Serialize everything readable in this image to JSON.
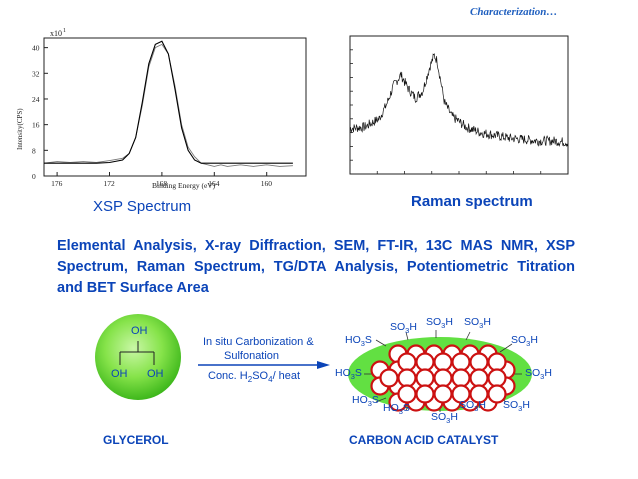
{
  "header": {
    "title": "Characterization…"
  },
  "xsp_chart": {
    "xlabel": "Binding Energy (eV)",
    "ylabel": "Intensity(CPS)",
    "multiplier": "x10",
    "multiplier_exp": "1",
    "x_ticks": [
      "176",
      "172",
      "168",
      "164",
      "160"
    ],
    "y_ticks": [
      "40",
      "32",
      "24",
      "16",
      "8",
      "0"
    ],
    "caption": "XSP Spectrum"
  },
  "raman_chart": {
    "caption": "Raman spectrum"
  },
  "chart_data": [
    {
      "type": "line",
      "xlabel": "Binding Energy (eV)",
      "ylabel": "Intensity(CPS)",
      "xlim": [
        177,
        157
      ],
      "ylim": [
        0,
        43
      ],
      "series": [
        {
          "x": [
            177,
            176,
            175,
            174,
            173,
            172,
            171,
            170.5,
            170,
            169.5,
            169,
            168.5,
            168,
            167.5,
            167,
            166.5,
            166,
            165.5,
            165,
            164,
            163.5,
            163,
            162,
            161,
            160,
            159,
            158
          ],
          "y": [
            4,
            4.5,
            4.2,
            4.5,
            4.2,
            4.8,
            5.5,
            7,
            12,
            22,
            34,
            40,
            41,
            38,
            28,
            16,
            9,
            6,
            4,
            3,
            3.5,
            3,
            3.5,
            3,
            3.5,
            3,
            3.2
          ]
        },
        {
          "x": [
            177,
            176,
            175,
            174,
            173,
            172,
            171,
            170.5,
            170,
            169.5,
            169,
            168.5,
            168,
            167.5,
            167,
            166.5,
            166,
            165.5,
            165,
            164,
            163,
            162,
            161,
            160,
            159,
            158
          ],
          "y": [
            4,
            4,
            4,
            4,
            4,
            4.2,
            5,
            7,
            12,
            23,
            35,
            41,
            42,
            38,
            27,
            15,
            8,
            5,
            4,
            4,
            4,
            4,
            4,
            4,
            4,
            4
          ]
        }
      ]
    },
    {
      "type": "line",
      "x": [
        1000,
        1100,
        1200,
        1250,
        1300,
        1350,
        1400,
        1450,
        1500,
        1550,
        1580,
        1600,
        1620,
        1650,
        1700,
        1750,
        1800,
        1900,
        2000,
        2100,
        2200,
        2300,
        2400,
        2500
      ],
      "y": [
        0.33,
        0.34,
        0.4,
        0.5,
        0.64,
        0.72,
        0.62,
        0.55,
        0.6,
        0.78,
        0.86,
        0.82,
        0.7,
        0.52,
        0.42,
        0.38,
        0.34,
        0.3,
        0.28,
        0.26,
        0.25,
        0.24,
        0.24,
        0.23
      ],
      "ylim": [
        0,
        1
      ]
    }
  ],
  "description": "Elemental Analysis, X-ray Diffraction, SEM, FT-IR, 13C MAS NMR, XSP Spectrum, Raman Spectrum, TG/DTA Analysis, Potentiometric Titration and BET Surface Area",
  "glycerol": {
    "oh_top": "OH",
    "oh_left": "OH",
    "oh_right": "OH",
    "label": "GLYCEROL"
  },
  "reaction": {
    "line1": "In situ Carbonization &",
    "line2": "Sulfonation",
    "cond_pre": "Conc. H",
    "cond_sub1": "2",
    "cond_mid": "SO",
    "cond_sub2": "4",
    "cond_post": "/ heat"
  },
  "catalyst": {
    "label": "CARBON ACID CATALYST",
    "groups": {
      "g1": {
        "a": "SO",
        "b": "3",
        "c": "H"
      },
      "g2": {
        "a": "SO",
        "b": "3",
        "c": "H"
      },
      "g3": {
        "a": "SO",
        "b": "3",
        "c": "H"
      },
      "g4": {
        "a": "HO",
        "b": "3",
        "c": "S"
      },
      "g5": {
        "a": "SO",
        "b": "3",
        "c": "H"
      },
      "g6": {
        "a": "HO",
        "b": "3",
        "c": "S"
      },
      "g7": {
        "a": "SO",
        "b": "3",
        "c": "H"
      },
      "g8": {
        "a": "HO",
        "b": "3",
        "c": "S"
      },
      "g9": {
        "a": "HO",
        "b": "3",
        "c": "S"
      },
      "g10": {
        "a": "SO",
        "b": "3",
        "c": "H"
      },
      "g11": {
        "a": "SO",
        "b": "3",
        "c": "H"
      },
      "g12": {
        "a": "SO",
        "b": "3",
        "c": "H"
      }
    }
  }
}
